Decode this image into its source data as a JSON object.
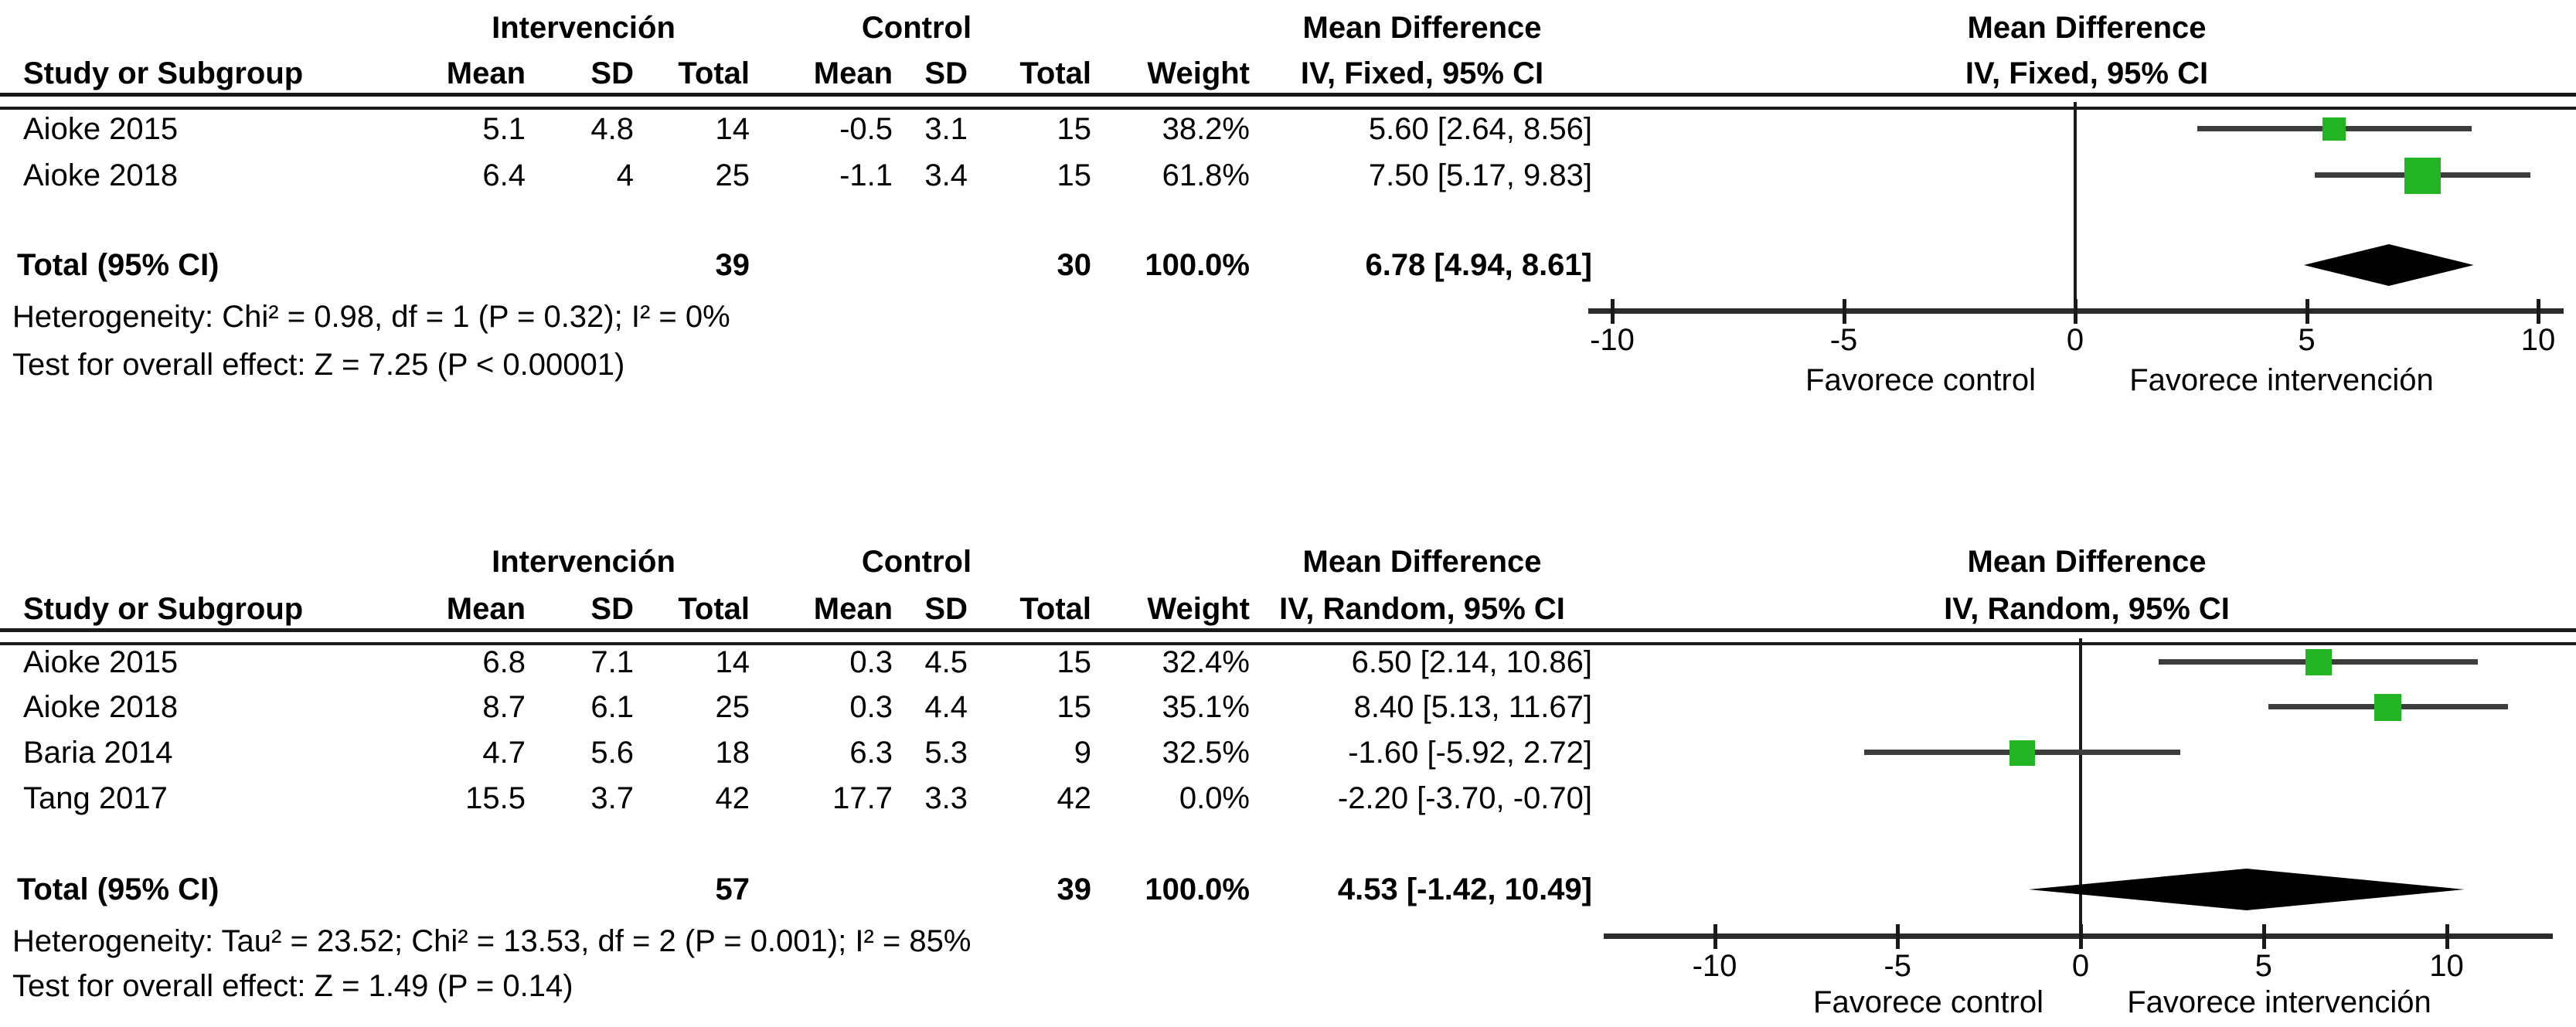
{
  "figure": {
    "description": "Forest plot figure with two meta-analysis panels (fixed and random effects)"
  },
  "chart_data": [
    {
      "type": "scatter",
      "subtype": "forest-plot",
      "model": "fixed",
      "columns": {
        "study": "Study or Subgroup",
        "group1": "Intervención",
        "group2": "Control",
        "mean": "Mean",
        "sd": "SD",
        "total": "Total",
        "weight": "Weight",
        "effect_line1": "Mean Difference",
        "effect_line2": "IV, Fixed, 95% CI"
      },
      "studies": [
        {
          "name": "Aioke 2015",
          "mean1": "5.1",
          "sd1": "4.8",
          "n1": "14",
          "mean2": "-0.5",
          "sd2": "3.1",
          "n2": "15",
          "weight": "38.2%",
          "ci_text": "5.60 [2.64, 8.56]",
          "est": 5.6,
          "lo": 2.64,
          "hi": 8.56,
          "marker": true,
          "marker_px": 30
        },
        {
          "name": "Aioke 2018",
          "mean1": "6.4",
          "sd1": "4",
          "n1": "25",
          "mean2": "-1.1",
          "sd2": "3.4",
          "n2": "15",
          "weight": "61.8%",
          "ci_text": "7.50 [5.17, 9.83]",
          "est": 7.5,
          "lo": 5.17,
          "hi": 9.83,
          "marker": true,
          "marker_px": 47
        }
      ],
      "total": {
        "label": "Total (95% CI)",
        "n1": "39",
        "n2": "30",
        "weight": "100.0%",
        "ci_text": "6.78 [4.94, 8.61]",
        "est": 6.78,
        "lo": 4.94,
        "hi": 8.61
      },
      "heterogeneity": "Heterogeneity: Chi² = 0.98, df = 1 (P = 0.32); I² = 0%",
      "overall_test": "Test for overall effect: Z = 7.25 (P < 0.00001)",
      "axis": {
        "min": -10,
        "max": 10,
        "tick_values": [
          -10,
          -5,
          0,
          5,
          10
        ],
        "tick_labels": [
          "-10",
          "-5",
          "0",
          "5",
          "10"
        ]
      },
      "favor_left": "Favorece control",
      "favor_right": "Favorece intervención",
      "marker_color": "#22b422",
      "diamond_color": "#000000"
    },
    {
      "type": "scatter",
      "subtype": "forest-plot",
      "model": "random",
      "columns": {
        "study": "Study or Subgroup",
        "group1": "Intervención",
        "group2": "Control",
        "mean": "Mean",
        "sd": "SD",
        "total": "Total",
        "weight": "Weight",
        "effect_line1": "Mean Difference",
        "effect_line2": "IV, Random, 95% CI"
      },
      "studies": [
        {
          "name": "Aioke 2015",
          "mean1": "6.8",
          "sd1": "7.1",
          "n1": "14",
          "mean2": "0.3",
          "sd2": "4.5",
          "n2": "15",
          "weight": "32.4%",
          "ci_text": "6.50 [2.14, 10.86]",
          "est": 6.5,
          "lo": 2.14,
          "hi": 10.86,
          "marker": true,
          "marker_px": 34
        },
        {
          "name": "Aioke 2018",
          "mean1": "8.7",
          "sd1": "6.1",
          "n1": "25",
          "mean2": "0.3",
          "sd2": "4.4",
          "n2": "15",
          "weight": "35.1%",
          "ci_text": "8.40 [5.13, 11.67]",
          "est": 8.4,
          "lo": 5.13,
          "hi": 11.67,
          "marker": true,
          "marker_px": 35
        },
        {
          "name": "Baria 2014",
          "mean1": "4.7",
          "sd1": "5.6",
          "n1": "18",
          "mean2": "6.3",
          "sd2": "5.3",
          "n2": "9",
          "weight": "32.5%",
          "ci_text": "-1.60 [-5.92, 2.72]",
          "est": -1.6,
          "lo": -5.92,
          "hi": 2.72,
          "marker": true,
          "marker_px": 33
        },
        {
          "name": "Tang 2017",
          "mean1": "15.5",
          "sd1": "3.7",
          "n1": "42",
          "mean2": "17.7",
          "sd2": "3.3",
          "n2": "42",
          "weight": "0.0%",
          "ci_text": "-2.20 [-3.70, -0.70]",
          "est": -2.2,
          "lo": -3.7,
          "hi": -0.7,
          "marker": false,
          "marker_px": 0
        }
      ],
      "total": {
        "label": "Total (95% CI)",
        "n1": "57",
        "n2": "39",
        "weight": "100.0%",
        "ci_text": "4.53 [-1.42, 10.49]",
        "est": 4.53,
        "lo": -1.42,
        "hi": 10.49
      },
      "heterogeneity": "Heterogeneity: Tau² = 23.52; Chi² = 13.53, df = 2 (P = 0.001); I² = 85%",
      "overall_test": "Test for overall effect: Z = 1.49 (P = 0.14)",
      "axis": {
        "min": -10,
        "max": 10,
        "tick_values": [
          -10,
          -5,
          0,
          5,
          10
        ],
        "tick_labels": [
          "-10",
          "-5",
          "0",
          "5",
          "10"
        ]
      },
      "favor_left": "Favorece control",
      "favor_right": "Favorece intervención",
      "marker_color": "#22b422",
      "diamond_color": "#000000"
    }
  ]
}
